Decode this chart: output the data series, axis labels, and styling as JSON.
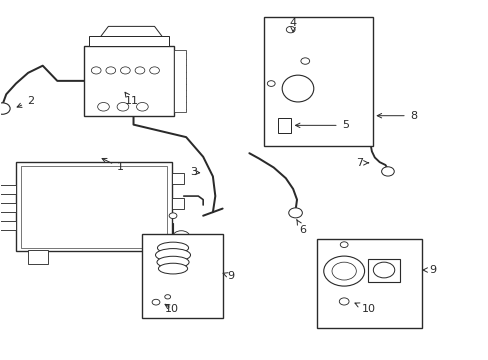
{
  "bg": "#ffffff",
  "lc": "#2a2a2a",
  "lw": 0.9,
  "fig_w": 4.89,
  "fig_h": 3.6,
  "dpi": 100,
  "labels": {
    "1": [
      0.245,
      0.535,
      0.235,
      0.565
    ],
    "2": [
      0.06,
      0.595,
      0.005,
      0.665
    ],
    "3": [
      0.395,
      0.52,
      0.36,
      0.525
    ],
    "4": [
      0.6,
      0.915,
      0.61,
      0.885
    ],
    "5": [
      0.7,
      0.715,
      0.67,
      0.715
    ],
    "6": [
      0.62,
      0.355,
      0.608,
      0.385
    ],
    "7": [
      0.745,
      0.545,
      0.765,
      0.545
    ],
    "8": [
      0.84,
      0.58,
      0.81,
      0.58
    ],
    "9a": [
      0.49,
      0.29,
      0.465,
      0.3
    ],
    "9b": [
      0.885,
      0.29,
      0.858,
      0.29
    ],
    "10a": [
      0.395,
      0.2,
      0.41,
      0.22
    ],
    "10b": [
      0.76,
      0.19,
      0.77,
      0.215
    ],
    "11": [
      0.27,
      0.76,
      0.255,
      0.74
    ]
  }
}
